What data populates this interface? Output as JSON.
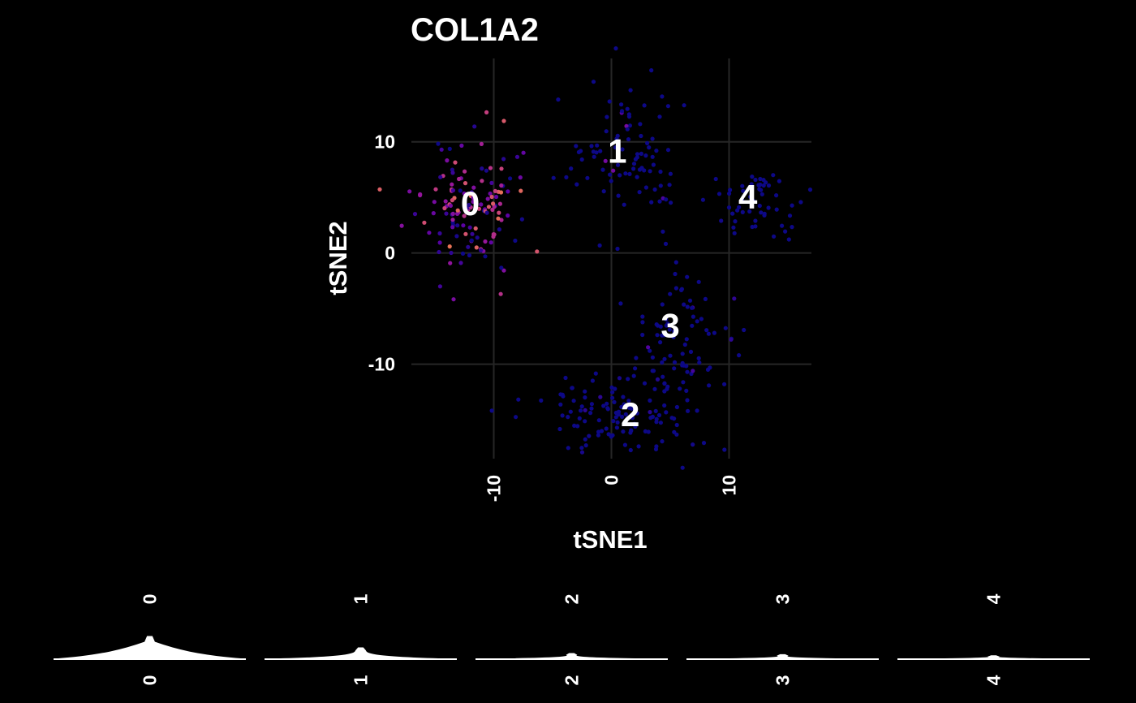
{
  "chart_data": {
    "type": "scatter",
    "title": "COL1A2",
    "xlabel": "tSNE1",
    "ylabel": "tSNE2",
    "xlim": [
      -17,
      17
    ],
    "ylim": [
      -18.5,
      17.5
    ],
    "xticks": [
      {
        "value": -10,
        "label": "-10"
      },
      {
        "value": 0,
        "label": "0"
      },
      {
        "value": 10,
        "label": "10"
      }
    ],
    "yticks": [
      {
        "value": 10,
        "label": "10"
      },
      {
        "value": 0,
        "label": "0"
      },
      {
        "value": -10,
        "label": "-10"
      }
    ],
    "grid": true,
    "color_scale": [
      "#0d0887",
      "#5b02a3",
      "#9a179b",
      "#cb4678",
      "#eb7852",
      "#fbb32f",
      "#f0f921"
    ],
    "clusters": [
      {
        "label": "0",
        "center": [
          -12,
          4.5
        ],
        "spread": [
          2.2,
          2.9
        ],
        "n": 140,
        "expr_mean": 0.3,
        "expr_var": 0.35
      },
      {
        "label": "1",
        "center": [
          1.2,
          9.5
        ],
        "spread": [
          2.4,
          3.5
        ],
        "n": 90,
        "expr_mean": 0.0,
        "expr_var": 0.06
      },
      {
        "label": "4",
        "center": [
          12,
          5
        ],
        "spread": [
          2.0,
          1.6
        ],
        "n": 55,
        "expr_mean": 0.0,
        "expr_var": 0.03
      },
      {
        "label": "3",
        "center": [
          5.5,
          -7
        ],
        "spread": [
          2.6,
          2.8
        ],
        "n": 80,
        "expr_mean": 0.0,
        "expr_var": 0.04
      },
      {
        "label": "2",
        "center": [
          1,
          -14.5
        ],
        "spread": [
          3.4,
          1.8
        ],
        "n": 120,
        "expr_mean": 0.0,
        "expr_var": 0.02
      }
    ],
    "cluster_label_positions": [
      {
        "label": "0",
        "x": -12,
        "y": 4.5
      },
      {
        "label": "1",
        "x": 0.5,
        "y": 9.2
      },
      {
        "label": "4",
        "x": 11.6,
        "y": 5.1
      },
      {
        "label": "3",
        "x": 5,
        "y": -6.5
      },
      {
        "label": "2",
        "x": 1.6,
        "y": -14.5
      }
    ],
    "violins": [
      {
        "label": "0",
        "width": 1.0,
        "height": 1.0
      },
      {
        "label": "1",
        "width": 0.25,
        "height": 0.5
      },
      {
        "label": "2",
        "width": 0.1,
        "height": 0.25
      },
      {
        "label": "3",
        "width": 0.08,
        "height": 0.2
      },
      {
        "label": "4",
        "width": 0.08,
        "height": 0.15
      }
    ]
  }
}
